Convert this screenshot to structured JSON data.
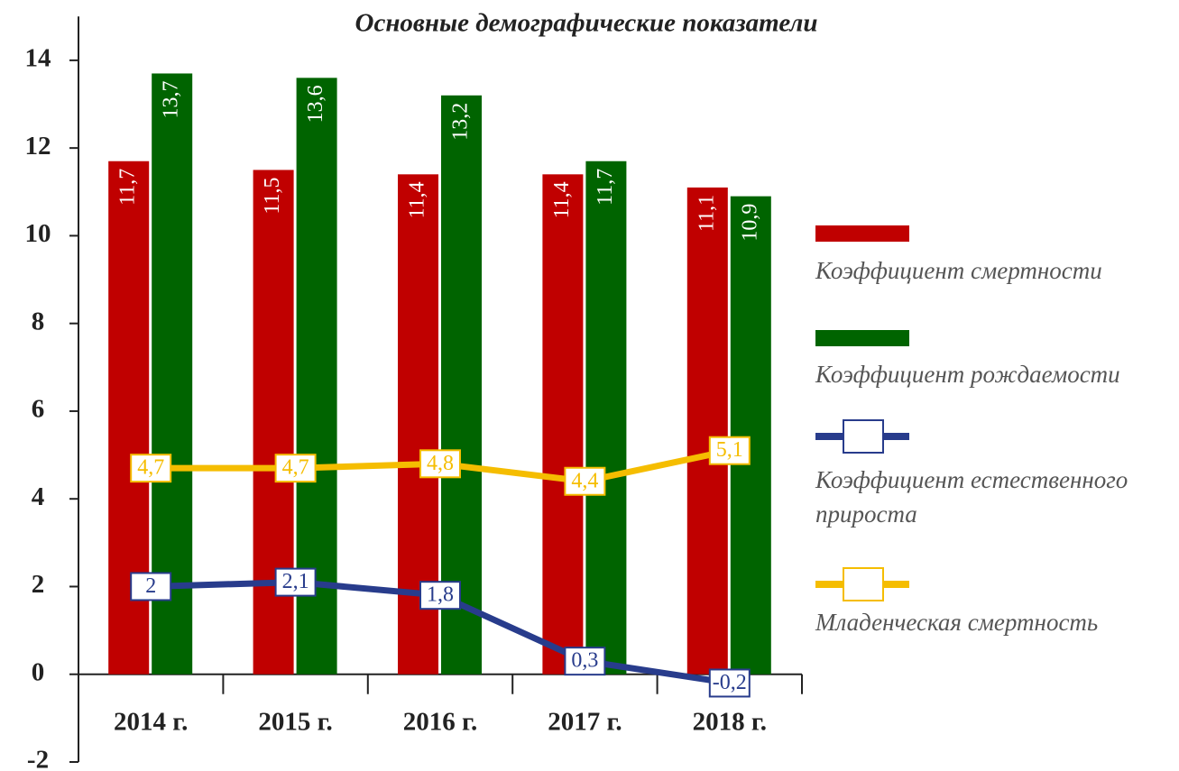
{
  "chart_data": {
    "type": "bar_line",
    "title": "Основные демографические показатели",
    "categories": [
      "2014 г.",
      "2015 г.",
      "2016 г.",
      "2017 г.",
      "2018 г."
    ],
    "series": [
      {
        "name": "Коэффициент смертности",
        "type": "bar",
        "color": "#c00000",
        "values": [
          11.7,
          11.5,
          11.4,
          11.4,
          11.1
        ],
        "value_labels": [
          "11,7",
          "11,5",
          "11,4",
          "11,4",
          "11,1"
        ]
      },
      {
        "name": "Коэффициент рождаемости",
        "type": "bar",
        "color": "#006400",
        "values": [
          13.7,
          13.6,
          13.2,
          11.7,
          10.9
        ],
        "value_labels": [
          "13,7",
          "13,6",
          "13,2",
          "11,7",
          "10,9"
        ]
      },
      {
        "name": "Коэффициент естественного прироста",
        "type": "line",
        "color": "#283c8c",
        "values": [
          2,
          2.1,
          1.8,
          0.3,
          -0.2
        ],
        "value_labels": [
          "2",
          "2,1",
          "1,8",
          "0,3",
          "-0,2"
        ]
      },
      {
        "name": "Младенческая смертность",
        "type": "line",
        "color": "#f5bd00",
        "values": [
          4.7,
          4.7,
          4.8,
          4.4,
          5.1
        ],
        "value_labels": [
          "4,7",
          "4,7",
          "4,8",
          "4,4",
          "5,1"
        ]
      }
    ],
    "ylim": [
      -2,
      15
    ],
    "yticks": [
      -2,
      0,
      2,
      4,
      6,
      8,
      10,
      12,
      14
    ],
    "grid": false,
    "legend": "right"
  }
}
